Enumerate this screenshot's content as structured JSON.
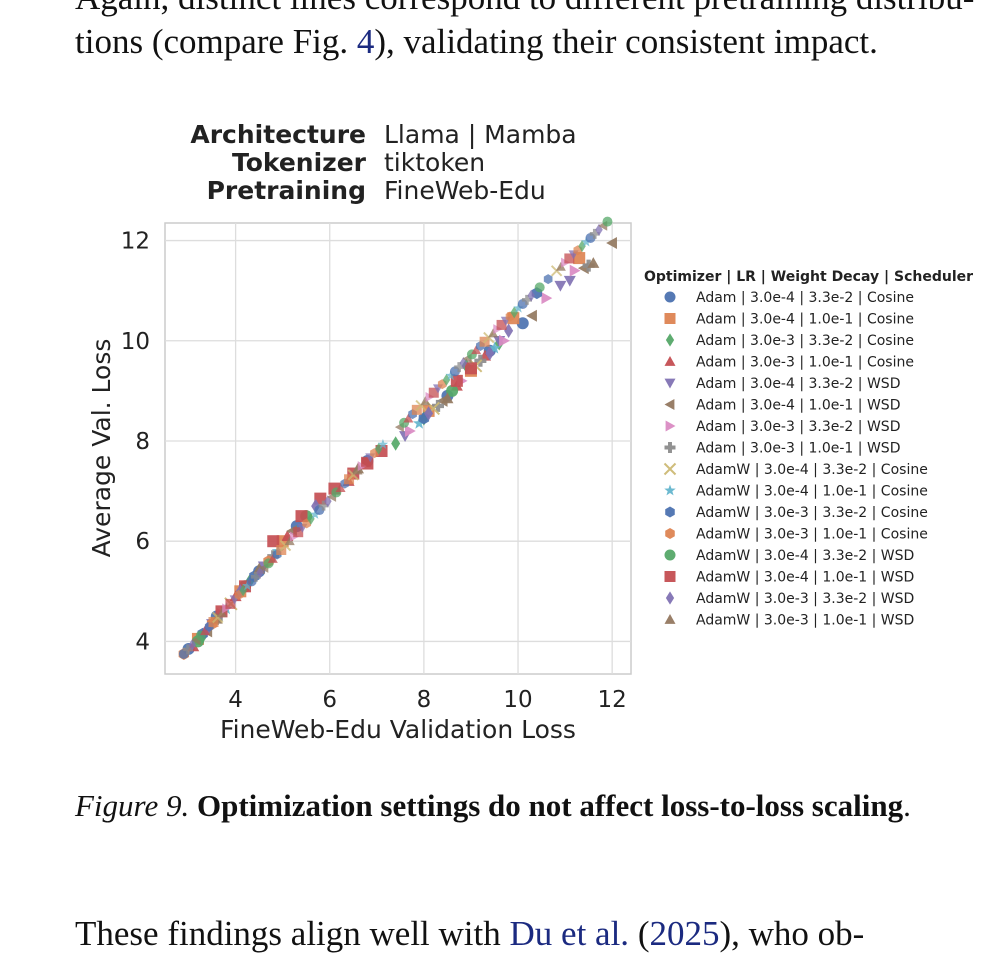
{
  "text": {
    "top_cut": "Again, distinct lines correspond to different pretraining distribu-",
    "top_line_a": "tions (compare Fig. ",
    "top_line_ref": "4",
    "top_line_b": "), validating their consistent impact.",
    "caption_label": "Figure 9.",
    "caption_title": "Optimization settings do not affect loss-to-loss scaling",
    "caption_end": ".",
    "bottom_a": "These findings align well with ",
    "bottom_cite": "Du et al.",
    "bottom_b": " (",
    "bottom_year": "2025",
    "bottom_c": "), who ob-"
  },
  "header": {
    "architecture_key": "Architecture",
    "architecture_value": "Llama  |  Mamba",
    "tokenizer_key": "Tokenizer",
    "tokenizer_value": "tiktoken",
    "pretraining_key": "Pretraining",
    "pretraining_value": "FineWeb-Edu"
  },
  "chart_data": {
    "type": "scatter",
    "xlabel": "FineWeb-Edu Validation Loss",
    "ylabel": "Average Val. Loss",
    "xlim": [
      2.5,
      12.4
    ],
    "ylim": [
      3.35,
      12.35
    ],
    "xticks": [
      4,
      6,
      8,
      10,
      12
    ],
    "yticks": [
      4,
      6,
      8,
      10,
      12
    ],
    "grid": true,
    "legend_title": "Optimizer  |  LR  |  Weight Decay  |  Scheduler",
    "legend_position": "right",
    "series": [
      {
        "name": "Adam  |  3.0e-4  |  3.3e-2  |  Cosine",
        "marker": "circle",
        "color": "#4c72b0",
        "points": [
          [
            3.0,
            3.85
          ],
          [
            3.6,
            4.5
          ],
          [
            4.5,
            5.4
          ],
          [
            5.3,
            6.3
          ],
          [
            6.8,
            7.6
          ],
          [
            8.5,
            8.9
          ],
          [
            9.4,
            9.8
          ],
          [
            10.1,
            10.35
          ]
        ]
      },
      {
        "name": "Adam  |  3.0e-4  |  1.0e-1  |  Cosine",
        "marker": "square",
        "color": "#dd8452",
        "points": [
          [
            3.2,
            4.05
          ],
          [
            4.1,
            5.0
          ],
          [
            5.0,
            6.0
          ],
          [
            8.1,
            8.6
          ],
          [
            9.0,
            9.4
          ],
          [
            9.9,
            10.45
          ],
          [
            11.3,
            11.65
          ]
        ]
      },
      {
        "name": "Adam  |  3.0e-3  |  3.3e-2  |  Cosine",
        "marker": "diamond",
        "color": "#55a868",
        "points": [
          [
            3.3,
            4.1
          ],
          [
            4.3,
            5.2
          ],
          [
            7.4,
            7.95
          ],
          [
            8.0,
            8.45
          ],
          [
            8.9,
            9.5
          ],
          [
            9.6,
            9.95
          ]
        ]
      },
      {
        "name": "Adam  |  3.0e-3  |  1.0e-1  |  Cosine",
        "marker": "triangle-up",
        "color": "#c44e52",
        "points": [
          [
            3.1,
            3.9
          ],
          [
            4.0,
            4.9
          ],
          [
            5.1,
            6.1
          ],
          [
            6.4,
            7.2
          ],
          [
            8.7,
            9.1
          ],
          [
            9.3,
            9.7
          ]
        ]
      },
      {
        "name": "Adam  |  3.0e-4  |  3.3e-2  |  WSD",
        "marker": "triangle-down",
        "color": "#8172b3",
        "points": [
          [
            3.5,
            4.35
          ],
          [
            4.6,
            5.5
          ],
          [
            7.6,
            8.1
          ],
          [
            9.6,
            10.0
          ],
          [
            10.9,
            11.1
          ],
          [
            11.1,
            11.2
          ]
        ]
      },
      {
        "name": "Adam  |  3.0e-4  |  1.0e-1  |  WSD",
        "marker": "triangle-left",
        "color": "#937860",
        "points": [
          [
            3.4,
            4.2
          ],
          [
            5.2,
            6.2
          ],
          [
            8.4,
            8.8
          ],
          [
            10.3,
            10.5
          ],
          [
            11.4,
            11.45
          ],
          [
            12.0,
            11.95
          ]
        ]
      },
      {
        "name": "Adam  |  3.0e-3  |  3.3e-2  |  WSD",
        "marker": "triangle-right",
        "color": "#da8bc3",
        "points": [
          [
            3.7,
            4.55
          ],
          [
            7.7,
            8.2
          ],
          [
            8.8,
            9.2
          ],
          [
            9.7,
            10.0
          ],
          [
            10.6,
            10.85
          ],
          [
            11.2,
            11.4
          ]
        ]
      },
      {
        "name": "Adam  |  3.0e-3  |  1.0e-1  |  WSD",
        "marker": "plus",
        "color": "#8c8c8c",
        "points": [
          [
            3.6,
            4.45
          ],
          [
            4.8,
            5.7
          ],
          [
            8.3,
            8.7
          ],
          [
            9.2,
            9.6
          ],
          [
            11.5,
            11.5
          ]
        ]
      },
      {
        "name": "AdamW  |  3.0e-4  |  3.3e-2  |  Cosine",
        "marker": "x",
        "color": "#ccb974",
        "points": [
          [
            3.9,
            4.75
          ],
          [
            8.2,
            8.65
          ],
          [
            9.1,
            9.5
          ]
        ]
      },
      {
        "name": "AdamW  |  3.0e-4  |  1.0e-1  |  Cosine",
        "marker": "star",
        "color": "#64b5cd",
        "points": [
          [
            3.8,
            4.65
          ],
          [
            4.9,
            5.8
          ],
          [
            7.9,
            8.35
          ],
          [
            9.5,
            9.85
          ]
        ]
      },
      {
        "name": "AdamW  |  3.0e-3  |  3.3e-2  |  Cosine",
        "marker": "hexagon",
        "color": "#4c72b0",
        "points": [
          [
            3.3,
            4.15
          ],
          [
            4.4,
            5.3
          ],
          [
            8.0,
            8.45
          ],
          [
            10.4,
            10.95
          ]
        ]
      },
      {
        "name": "AdamW  |  3.0e-3  |  1.0e-1  |  Cosine",
        "marker": "hexagon",
        "color": "#dd8452",
        "points": [
          [
            2.9,
            3.75
          ],
          [
            3.5,
            4.35
          ],
          [
            4.7,
            5.6
          ]
        ]
      },
      {
        "name": "AdamW  |  3.0e-4  |  3.3e-2  |  WSD",
        "marker": "circle",
        "color": "#55a868",
        "points": [
          [
            3.2,
            4.0
          ],
          [
            4.2,
            5.1
          ],
          [
            5.5,
            6.5
          ],
          [
            8.6,
            9.0
          ]
        ]
      },
      {
        "name": "AdamW  |  3.0e-4  |  1.0e-1  |  WSD",
        "marker": "square",
        "color": "#c44e52",
        "points": [
          [
            3.7,
            4.6
          ],
          [
            4.2,
            5.1
          ],
          [
            4.8,
            6.0
          ],
          [
            5.4,
            6.5
          ],
          [
            5.8,
            6.85
          ],
          [
            6.1,
            7.05
          ],
          [
            6.5,
            7.35
          ],
          [
            6.8,
            7.55
          ],
          [
            7.1,
            7.8
          ],
          [
            8.7,
            9.2
          ],
          [
            9.0,
            9.45
          ]
        ]
      },
      {
        "name": "AdamW  |  3.0e-3  |  3.3e-2  |  WSD",
        "marker": "diamond",
        "color": "#8172b3",
        "points": [
          [
            3.4,
            4.25
          ],
          [
            4.1,
            5.0
          ],
          [
            5.7,
            6.7
          ],
          [
            8.1,
            8.55
          ],
          [
            9.4,
            9.75
          ],
          [
            9.8,
            10.2
          ]
        ]
      },
      {
        "name": "AdamW  |  3.0e-3  |  1.0e-1  |  WSD",
        "marker": "triangle-up",
        "color": "#937860",
        "points": [
          [
            3.6,
            4.45
          ],
          [
            4.5,
            5.45
          ],
          [
            6.6,
            7.45
          ],
          [
            8.5,
            8.85
          ],
          [
            11.6,
            11.55
          ]
        ]
      }
    ]
  }
}
